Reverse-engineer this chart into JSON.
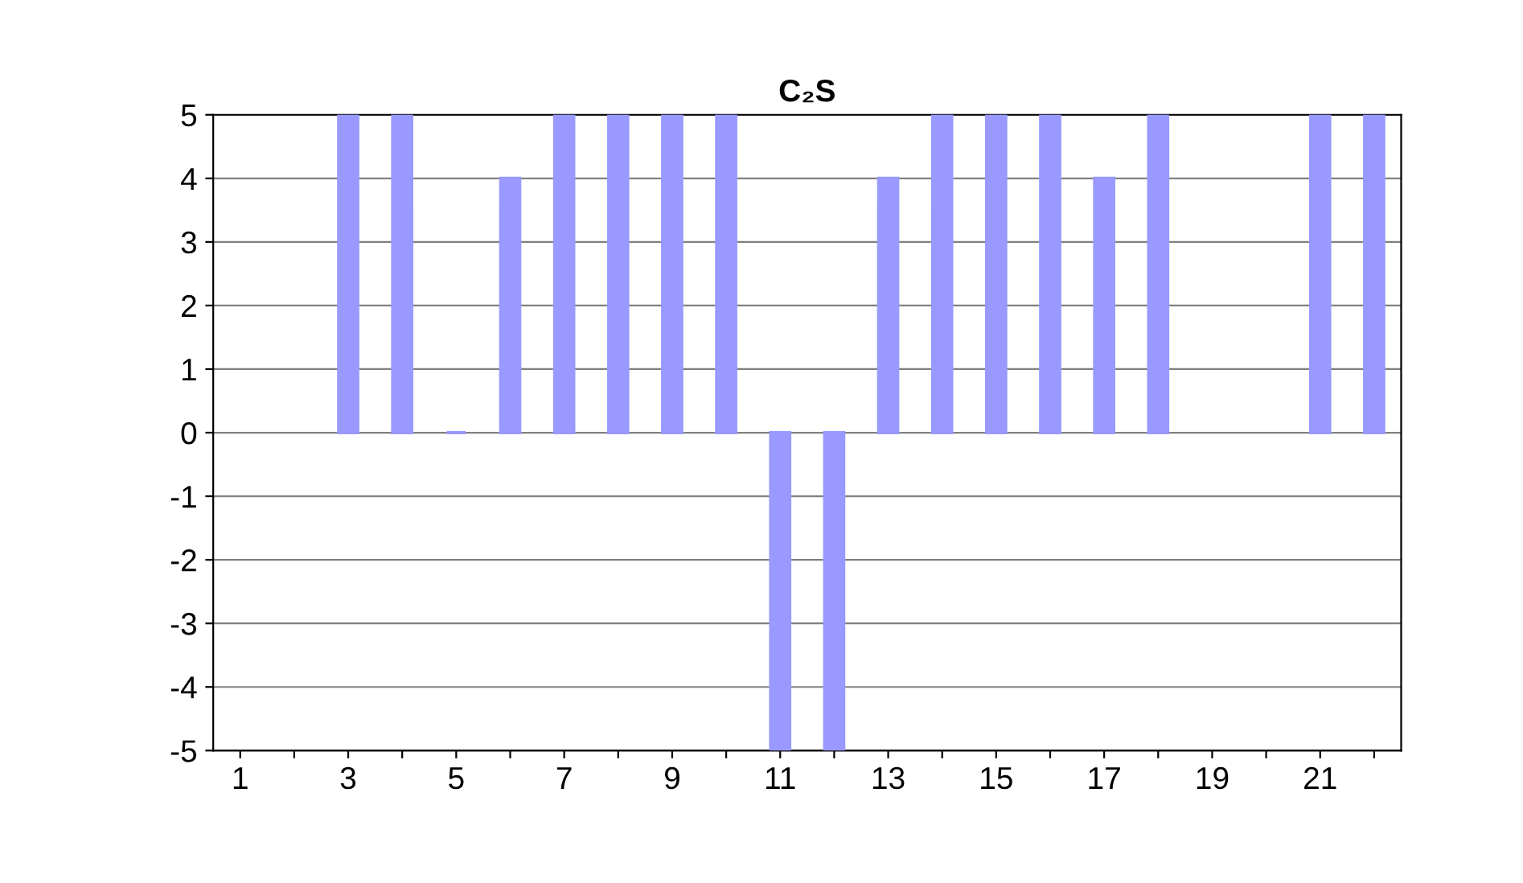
{
  "chart_data": {
    "type": "bar",
    "title": "C₂S",
    "categories": [
      "1",
      null,
      "3",
      null,
      "5",
      null,
      "7",
      null,
      "9",
      null,
      "11",
      null,
      "13",
      null,
      "15",
      null,
      "17",
      null,
      "19",
      null,
      "21",
      null
    ],
    "values": [
      null,
      null,
      5,
      5,
      0,
      4,
      5,
      5,
      5,
      5,
      -5,
      -5,
      4,
      5,
      5,
      5,
      4,
      5,
      null,
      null,
      5,
      5
    ],
    "color": "#9999ff",
    "ylim": [
      -5,
      5
    ],
    "yticks": [
      -5,
      -4,
      -3,
      -2,
      -1,
      0,
      1,
      2,
      3,
      4,
      5
    ],
    "grid": "y",
    "legend": false
  }
}
